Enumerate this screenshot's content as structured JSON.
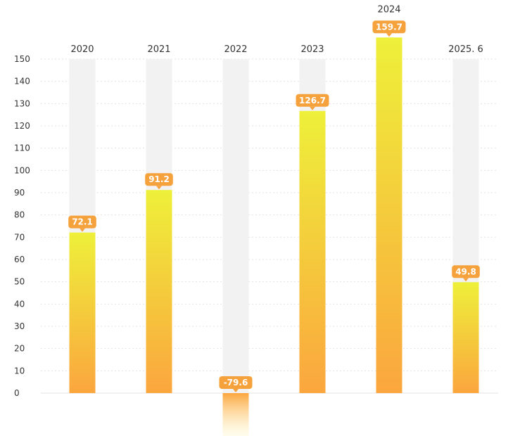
{
  "chart_data": {
    "type": "bar",
    "title": "",
    "xlabel": "",
    "ylabel": "",
    "categories": [
      "2020",
      "2021",
      "2022",
      "2023",
      "2024",
      "2025. 6"
    ],
    "values": [
      72.1,
      91.2,
      -79.6,
      126.7,
      159.7,
      49.8
    ],
    "value_labels": [
      "72.1",
      "91.2",
      "-79.6",
      "126.7",
      "159.7",
      "49.8"
    ],
    "ylim": [
      0,
      150
    ],
    "yticks": [
      0,
      10,
      20,
      30,
      40,
      50,
      60,
      70,
      80,
      90,
      100,
      110,
      120,
      130,
      140,
      150
    ],
    "grid": true,
    "legend": "none",
    "colors": {
      "bar_top": "#eef03a",
      "bar_bottom": "#fba63e",
      "background_column": "#f2f2f2",
      "label_badge": "#f5a23c",
      "grid": "#e3e3e3",
      "text": "#333333"
    }
  }
}
